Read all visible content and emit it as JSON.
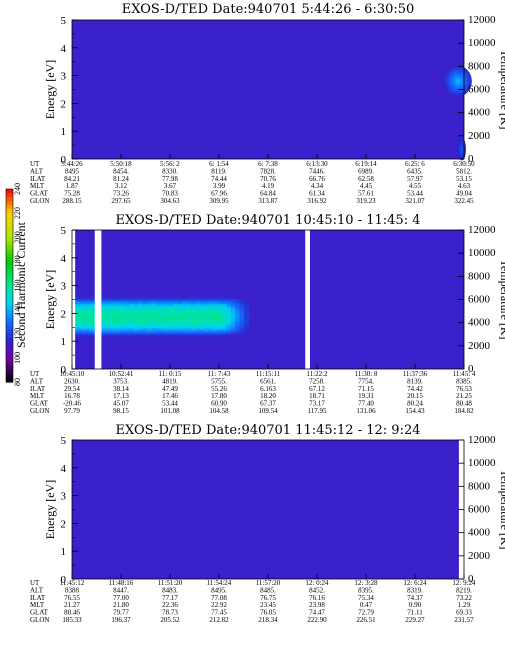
{
  "colorbar": {
    "label": "Second Harmonic Current",
    "ticks": [
      "80",
      "100",
      "120",
      "140",
      "160",
      "180",
      "200",
      "220",
      "240"
    ],
    "range": [
      80,
      240
    ]
  },
  "chart_data": [
    {
      "type": "heatmap",
      "title": "EXOS-D/TED   Date:940701  5:44:26 - 6:30:50",
      "ylabel": "Energy [eV]",
      "y2label": "Temperature [K]",
      "ylim": [
        0,
        5
      ],
      "y2lim": [
        0,
        12000
      ],
      "yticks": [
        "0",
        "1",
        "2",
        "3",
        "4",
        "5"
      ],
      "y2ticks": [
        "0",
        "2000",
        "4000",
        "6000",
        "8000",
        "10000",
        "12000"
      ],
      "gaps": [],
      "features": [
        {
          "kind": "blob",
          "x": 0.985,
          "y": 2.8,
          "spread_x": 0.035,
          "spread_y": 0.55,
          "level": 140
        },
        {
          "kind": "blob",
          "x": 0.995,
          "y": 0.35,
          "spread_x": 0.01,
          "spread_y": 0.4,
          "level": 125
        }
      ],
      "ephemeris": {
        "labels": [
          "UT",
          "ALT",
          "ILAT",
          "MLT",
          "GLAT",
          "GLON"
        ],
        "columns": [
          [
            "5:44:26",
            "8495",
            "84.21",
            "1.87",
            "75.28",
            "288.15"
          ],
          [
            "5:50:18",
            "8454.",
            "81.24",
            "3.12",
            "73.26",
            "297.65"
          ],
          [
            "5:56: 2",
            "8330.",
            "77.98",
            "3.67",
            "70.83",
            "304.63"
          ],
          [
            "6: 1:54",
            "8119.",
            "74.44",
            "3.99",
            "67.96",
            "309.95"
          ],
          [
            "6: 7:38",
            "7828.",
            "70.76",
            "4.19",
            "64.84",
            "313.87"
          ],
          [
            "6:13:30",
            "7446.",
            "66.76",
            "4.34",
            "61.34",
            "316.92"
          ],
          [
            "6:19:14",
            "6989.",
            "62.58",
            "4.45",
            "57.61",
            "319.23"
          ],
          [
            "6:25: 6",
            "6435.",
            "57.97",
            "4.55",
            "53.44",
            "321.07"
          ],
          [
            "6:30:50",
            "5812.",
            "53.15",
            "4.63",
            "49.04",
            "322.45"
          ]
        ]
      }
    },
    {
      "type": "heatmap",
      "title": "EXOS-D/TED   Date:940701  10:45:10 - 11:45: 4",
      "ylabel": "Energy [eV]",
      "y2label": "Temperature [K]",
      "ylim": [
        0,
        5
      ],
      "y2lim": [
        0,
        12000
      ],
      "yticks": [
        "0",
        "1",
        "2",
        "3",
        "4",
        "5"
      ],
      "y2ticks": [
        "0",
        "2000",
        "4000",
        "6000",
        "8000",
        "10000",
        "12000"
      ],
      "gaps": [
        [
          0.0,
          0.008
        ],
        [
          0.058,
          0.075
        ],
        [
          0.595,
          0.607
        ]
      ],
      "features": [
        {
          "kind": "band",
          "x0": 0.0,
          "x1": 0.45,
          "y": 1.9,
          "spread_y": 0.7,
          "level": 160,
          "fade": 0.38
        }
      ],
      "ephemeris": {
        "labels": [
          "UT",
          "ALT",
          "ILAT",
          "MLT",
          "GLAT",
          "GLON"
        ],
        "columns": [
          [
            "10:45:10",
            "2630.",
            "29.54",
            "16.78",
            "-20.46",
            "97.79"
          ],
          [
            "10:52:41",
            "3753.",
            "38.14",
            "17.13",
            "45.07",
            "98.15"
          ],
          [
            "11: 0:15",
            "4819.",
            "47.49",
            "17.46",
            "53.44",
            "101.08"
          ],
          [
            "11: 7:43",
            "5755.",
            "55.26",
            "17.80",
            "60.90",
            "104.58"
          ],
          [
            "11:15:11",
            "6561.",
            "6.163",
            "18.20",
            "67.37",
            "109.54"
          ],
          [
            "11:22:2",
            "7258.",
            "67.12",
            "18.71",
            "73.17",
            "117.95"
          ],
          [
            "11:30: 8",
            "7754.",
            "71.15",
            "19.31",
            "77.40",
            "131.06"
          ],
          [
            "11:37:36",
            "8139.",
            "74.42",
            "20.15",
            "80.24",
            "154.43"
          ],
          [
            "11:45: 4",
            "8385.",
            "76.53",
            "21.25",
            "80.48",
            "184.82"
          ]
        ]
      }
    },
    {
      "type": "heatmap",
      "title": "EXOS-D/TED   Date:940701  11:45:12 - 12: 9:24",
      "ylabel": "Energy [eV]",
      "y2label": "Temperature [K]",
      "ylim": [
        0,
        5
      ],
      "y2lim": [
        0,
        12000
      ],
      "yticks": [
        "0",
        "1",
        "2",
        "3",
        "4",
        "5"
      ],
      "y2ticks": [
        "0",
        "2000",
        "4000",
        "6000",
        "8000",
        "10000",
        "12000"
      ],
      "gaps": [
        [
          0.987,
          1.0
        ]
      ],
      "features": [],
      "ephemeris": {
        "labels": [
          "UT",
          "ALT",
          "ILAT",
          "MLT",
          "GLAT",
          "GLON"
        ],
        "columns": [
          [
            "11:45:12",
            "8388",
            "76.55",
            "21.27",
            "80.46",
            "185.33"
          ],
          [
            "11:48:16",
            "8447.",
            "77.00",
            "21.80",
            "79.77",
            "196.37"
          ],
          [
            "11:51:20",
            "8483.",
            "77.17",
            "22.36",
            "78.73",
            "205.52"
          ],
          [
            "11:54:24",
            "8495.",
            "77.08",
            "22.92",
            "77.45",
            "212.82"
          ],
          [
            "11:57:20",
            "8485.",
            "76.75",
            "23.45",
            "76.05",
            "218.34"
          ],
          [
            "12: 0:24",
            "8452.",
            "76.16",
            "23.98",
            "74.47",
            "222.90"
          ],
          [
            "12: 3:28",
            "8395.",
            "75.34",
            "0.47",
            "72.79",
            "226.51"
          ],
          [
            "12: 6:24",
            "8319.",
            "74.37",
            "0.90",
            "71.11",
            "229.27"
          ],
          [
            "12: 9:24",
            "8219.",
            "73.22",
            "1.29",
            "69.33",
            "231.57"
          ]
        ]
      }
    }
  ]
}
